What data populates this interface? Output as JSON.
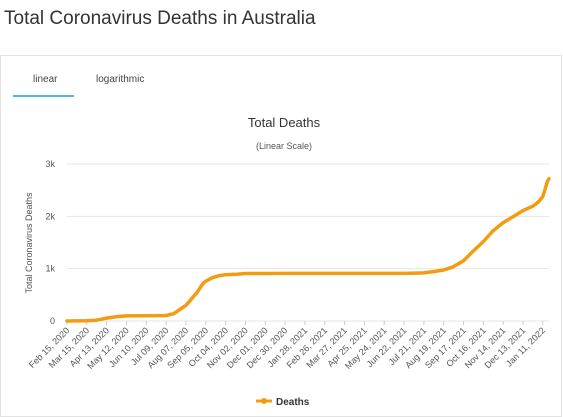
{
  "page": {
    "title": "Total Coronavirus Deaths in Australia"
  },
  "tabs": [
    {
      "label": "linear",
      "active": true
    },
    {
      "label": "logarithmic",
      "active": false
    }
  ],
  "colors": {
    "series": "#f39c12",
    "active_tab_underline": "#4fb3e6",
    "grid": "#e6e6e6"
  },
  "chart_data": {
    "type": "line",
    "title": "Total Deaths",
    "subtitle": "(Linear Scale)",
    "xlabel": "",
    "ylabel": "Total Coronavirus Deaths",
    "ylim": [
      0,
      3000
    ],
    "y_ticks": [
      {
        "value": 0,
        "label": "0"
      },
      {
        "value": 1000,
        "label": "1k"
      },
      {
        "value": 2000,
        "label": "2k"
      },
      {
        "value": 3000,
        "label": "3k"
      }
    ],
    "x_ticks": [
      "Feb 15, 2020",
      "Mar 15, 2020",
      "Apr 13, 2020",
      "May 12, 2020",
      "Jun 10, 2020",
      "Jul 09, 2020",
      "Aug 07, 2020",
      "Sep 05, 2020",
      "Oct 04, 2020",
      "Nov 02, 2020",
      "Dec 01, 2020",
      "Dec 30, 2020",
      "Jan 28, 2021",
      "Feb 26, 2021",
      "Mar 27, 2021",
      "Apr 25, 2021",
      "May 24, 2021",
      "Jun 22, 2021",
      "Jul 21, 2021",
      "Aug 19, 2021",
      "Sep 17, 2021",
      "Oct 16, 2021",
      "Nov 14, 2021",
      "Dec 13, 2021",
      "Jan 11, 2022"
    ],
    "x_range": [
      "Feb 15, 2020",
      "Jan 20, 2022"
    ],
    "grid": true,
    "legend_position": "bottom",
    "series": [
      {
        "name": "Deaths",
        "points": [
          [
            "Feb 15, 2020",
            0
          ],
          [
            "Mar 15, 2020",
            5
          ],
          [
            "Mar 29, 2020",
            15
          ],
          [
            "Apr 13, 2020",
            55
          ],
          [
            "Apr 28, 2020",
            85
          ],
          [
            "May 12, 2020",
            98
          ],
          [
            "Jun 10, 2020",
            102
          ],
          [
            "Jul 09, 2020",
            106
          ],
          [
            "Jul 20, 2020",
            140
          ],
          [
            "Jul 30, 2020",
            230
          ],
          [
            "Aug 07, 2020",
            300
          ],
          [
            "Aug 15, 2020",
            420
          ],
          [
            "Aug 24, 2020",
            560
          ],
          [
            "Sep 01, 2020",
            720
          ],
          [
            "Sep 05, 2020",
            760
          ],
          [
            "Sep 15, 2020",
            830
          ],
          [
            "Sep 25, 2020",
            868
          ],
          [
            "Oct 04, 2020",
            885
          ],
          [
            "Oct 20, 2020",
            895
          ],
          [
            "Nov 02, 2020",
            907
          ],
          [
            "Dec 01, 2020",
            908
          ],
          [
            "Dec 30, 2020",
            909
          ],
          [
            "Jan 28, 2021",
            909
          ],
          [
            "Feb 26, 2021",
            909
          ],
          [
            "Mar 27, 2021",
            909
          ],
          [
            "Apr 25, 2021",
            910
          ],
          [
            "May 24, 2021",
            910
          ],
          [
            "Jun 22, 2021",
            910
          ],
          [
            "Jul 09, 2021",
            915
          ],
          [
            "Jul 21, 2021",
            920
          ],
          [
            "Aug 05, 2021",
            945
          ],
          [
            "Aug 19, 2021",
            975
          ],
          [
            "Sep 01, 2021",
            1030
          ],
          [
            "Sep 17, 2021",
            1150
          ],
          [
            "Sep 30, 2021",
            1320
          ],
          [
            "Oct 16, 2021",
            1520
          ],
          [
            "Oct 30, 2021",
            1720
          ],
          [
            "Nov 14, 2021",
            1880
          ],
          [
            "Nov 28, 2021",
            1990
          ],
          [
            "Dec 13, 2021",
            2110
          ],
          [
            "Dec 28, 2021",
            2200
          ],
          [
            "Jan 05, 2022",
            2280
          ],
          [
            "Jan 11, 2022",
            2380
          ],
          [
            "Jan 15, 2022",
            2550
          ],
          [
            "Jan 18, 2022",
            2680
          ],
          [
            "Jan 20, 2022",
            2720
          ]
        ]
      }
    ]
  }
}
